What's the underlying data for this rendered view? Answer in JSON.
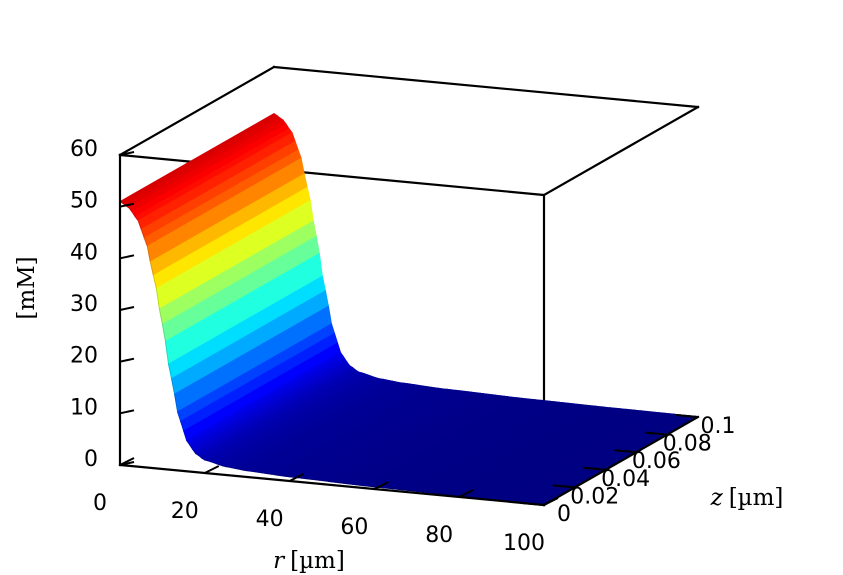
{
  "chart_data": {
    "type": "surface",
    "colormap": "jet",
    "grid": false,
    "xlabel_var": "r",
    "xlabel_unit": "[µm]",
    "ylabel_var": "z",
    "ylabel_unit": "[µm]",
    "zlabel": "[mM]",
    "xlim": [
      0,
      100
    ],
    "ylim": [
      0,
      0.1
    ],
    "zlim": [
      0,
      60
    ],
    "x_ticks": [
      "0",
      "20",
      "40",
      "60",
      "80",
      "100"
    ],
    "y_ticks": [
      "0",
      "0.02",
      "0.04",
      "0.06",
      "0.08",
      "0.1"
    ],
    "z_ticks": [
      "0",
      "10",
      "20",
      "30",
      "40",
      "50",
      "60"
    ],
    "surface_profile": {
      "r": [
        0,
        2,
        4,
        6,
        8,
        10,
        12,
        14,
        16,
        18,
        20,
        25,
        30,
        40,
        60,
        80,
        100
      ],
      "concentration": [
        51,
        50,
        48,
        44,
        37,
        28,
        18,
        10,
        5.5,
        3.5,
        2.5,
        1.6,
        1.2,
        0.8,
        0.4,
        0.2,
        0.1
      ],
      "z_range": [
        0,
        0.1
      ]
    }
  }
}
